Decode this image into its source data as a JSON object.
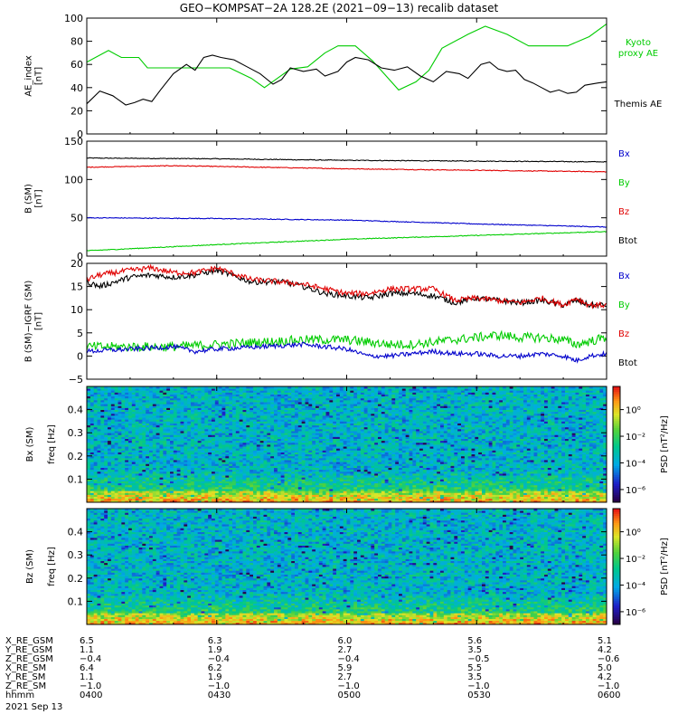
{
  "title": "GEO−KOMPSAT−2A 128.2E (2021−09−13) recalib dataset",
  "colors": {
    "black": "#000000",
    "red": "#e00000",
    "green": "#00cc00",
    "blue": "#0000cc"
  },
  "time_ticks_minutes": [
    0,
    30,
    60,
    90,
    120
  ],
  "chart_data": [
    {
      "type": "line",
      "ylabel": "AE_index [nT]",
      "ylim": [
        0,
        100
      ],
      "yticks": [
        "0",
        "20",
        "40",
        "60",
        "80",
        "100"
      ],
      "legend": [
        {
          "text": "Kyoto proxy AE",
          "lines": [
            "Kyoto",
            "proxy AE"
          ],
          "color": "#00cc00"
        },
        {
          "text": "Themis AE",
          "lines": [
            "Themis AE"
          ],
          "color": "#000000"
        }
      ],
      "series": [
        {
          "name": "Kyoto proxy AE",
          "color": "#00cc00",
          "x": [
            0,
            5,
            8,
            12,
            14,
            33,
            38,
            41,
            44,
            47,
            51,
            55,
            58,
            62,
            66,
            72,
            76,
            79,
            82,
            88,
            92,
            97,
            102,
            106,
            111,
            116,
            120
          ],
          "y": [
            62,
            72,
            66,
            66,
            57,
            57,
            48,
            40,
            48,
            56,
            58,
            70,
            76,
            76,
            63,
            38,
            45,
            55,
            74,
            86,
            93,
            86,
            76,
            76,
            76,
            84,
            95
          ]
        },
        {
          "name": "Themis AE",
          "color": "#000000",
          "x": [
            0,
            3,
            6,
            9,
            11,
            13,
            15,
            17,
            20,
            23,
            25,
            27,
            29,
            31,
            34,
            37,
            40,
            43,
            45,
            47,
            50,
            53,
            55,
            58,
            60,
            62,
            65,
            68,
            71,
            74,
            77,
            80,
            83,
            86,
            88,
            91,
            93,
            95,
            97,
            99,
            101,
            103,
            105,
            107,
            109,
            111,
            113,
            115,
            118,
            120
          ],
          "y": [
            26,
            37,
            33,
            25,
            27,
            30,
            28,
            38,
            52,
            60,
            55,
            66,
            68,
            66,
            64,
            58,
            52,
            43,
            47,
            57,
            54,
            56,
            50,
            54,
            62,
            66,
            64,
            57,
            55,
            58,
            50,
            45,
            54,
            52,
            48,
            60,
            62,
            56,
            54,
            55,
            47,
            44,
            40,
            36,
            38,
            35,
            36,
            42,
            44,
            45
          ]
        }
      ]
    },
    {
      "type": "line",
      "ylabel": "B (SM) [nT]",
      "ylim": [
        0,
        150
      ],
      "yticks": [
        "0",
        "50",
        "100",
        "150"
      ],
      "legend": [
        {
          "text": "Bx",
          "color": "#0000cc"
        },
        {
          "text": "By",
          "color": "#00cc00"
        },
        {
          "text": "Bz",
          "color": "#e00000"
        },
        {
          "text": "Btot",
          "color": "#000000"
        }
      ],
      "series": [
        {
          "name": "Btot",
          "color": "#000000",
          "x": [
            0,
            30,
            60,
            90,
            120
          ],
          "y": [
            128,
            127,
            125,
            124,
            123
          ],
          "jitter": 0.5
        },
        {
          "name": "Bz",
          "color": "#e00000",
          "x": [
            0,
            20,
            30,
            60,
            90,
            120
          ],
          "y": [
            116,
            118,
            117,
            114,
            112,
            110
          ],
          "jitter": 0.5
        },
        {
          "name": "Bx",
          "color": "#0000cc",
          "x": [
            0,
            30,
            60,
            90,
            120
          ],
          "y": [
            50,
            49,
            47,
            42,
            38
          ],
          "jitter": 0.5
        },
        {
          "name": "By",
          "color": "#00cc00",
          "x": [
            0,
            30,
            60,
            90,
            120
          ],
          "y": [
            7,
            15,
            22,
            27,
            32
          ],
          "jitter": 0.5
        }
      ]
    },
    {
      "type": "line",
      "ylabel": "B (SM)−IGRF (SM) [nT]",
      "ylim": [
        -5,
        20
      ],
      "yticks": [
        "−5",
        "0",
        "5",
        "10",
        "15",
        "20"
      ],
      "legend": [
        {
          "text": "Bx",
          "color": "#0000cc"
        },
        {
          "text": "By",
          "color": "#00cc00"
        },
        {
          "text": "Bz",
          "color": "#e00000"
        },
        {
          "text": "Btot",
          "color": "#000000"
        }
      ],
      "series": [
        {
          "name": "Btot",
          "color": "#000000",
          "x": [
            0,
            3,
            10,
            15,
            20,
            25,
            30,
            38,
            45,
            50,
            55,
            60,
            65,
            70,
            75,
            80,
            85,
            90,
            95,
            100,
            105,
            110,
            113,
            116,
            120
          ],
          "y": [
            16,
            15,
            17,
            17.5,
            17,
            17.5,
            18.5,
            16,
            16,
            15,
            13.5,
            13,
            12.5,
            13.5,
            13.5,
            13,
            11.5,
            12.5,
            12,
            11.5,
            12,
            11,
            12,
            11,
            11
          ],
          "jitter": 0.6
        },
        {
          "name": "Bz",
          "color": "#e00000",
          "x": [
            0,
            3,
            10,
            15,
            20,
            25,
            30,
            38,
            45,
            50,
            55,
            60,
            65,
            70,
            75,
            80,
            85,
            90,
            95,
            100,
            105,
            110,
            113,
            116,
            120
          ],
          "y": [
            16.5,
            17.5,
            18.5,
            19,
            18,
            18,
            19,
            16.5,
            16,
            15.5,
            14.5,
            13.5,
            13.5,
            14.5,
            14.5,
            14.5,
            12,
            12.5,
            12,
            11.5,
            12.5,
            11,
            12.5,
            11,
            11
          ],
          "jitter": 0.6
        },
        {
          "name": "By",
          "color": "#00cc00",
          "x": [
            0,
            10,
            20,
            30,
            40,
            50,
            60,
            65,
            70,
            75,
            80,
            90,
            95,
            100,
            105,
            110,
            113,
            120
          ],
          "y": [
            2,
            2,
            2,
            2.5,
            3,
            3.5,
            3.5,
            3,
            2.5,
            2.5,
            3,
            4,
            4.5,
            4,
            4,
            3.5,
            2.5,
            4
          ],
          "jitter": 1.0
        },
        {
          "name": "Bx",
          "color": "#0000cc",
          "x": [
            0,
            10,
            20,
            25,
            30,
            40,
            50,
            55,
            60,
            65,
            70,
            75,
            80,
            85,
            90,
            95,
            100,
            105,
            110,
            113,
            116,
            120
          ],
          "y": [
            1,
            1.5,
            2,
            1,
            1.5,
            2,
            2.5,
            2,
            1.5,
            0,
            0,
            0.5,
            1,
            0.5,
            0.5,
            0,
            0,
            0.5,
            0,
            -1,
            0,
            0.5
          ],
          "jitter": 0.5
        }
      ]
    },
    {
      "type": "heatmap",
      "title": "Bx (SM)",
      "ylabel": "freq [Hz]",
      "ylim": [
        0,
        0.5
      ],
      "yticks": [
        "0.1",
        "0.2",
        "0.3",
        "0.4"
      ],
      "colorbar": {
        "label": "PSD [nT²/Hz]",
        "ticks": [
          "10⁰",
          "10⁻²",
          "10⁻⁴",
          "10⁻⁶"
        ]
      }
    },
    {
      "type": "heatmap",
      "title": "Bz (SM)",
      "ylabel": "freq [Hz]",
      "ylim": [
        0,
        0.5
      ],
      "yticks": [
        "0.1",
        "0.2",
        "0.3",
        "0.4"
      ],
      "colorbar": {
        "label": "PSD [nT²/Hz]",
        "ticks": [
          "10⁰",
          "10⁻²",
          "10⁻⁴",
          "10⁻⁶"
        ]
      }
    }
  ],
  "ephemeris": {
    "labels": [
      "X_RE_GSM",
      "Y_RE_GSM",
      "Z_RE_GSM",
      "X_RE_SM",
      "Y_RE_SM",
      "Z_RE_SM",
      "hhmm"
    ],
    "columns": [
      [
        "6.5",
        "1.1",
        "−0.4",
        "6.4",
        "1.1",
        "−1.0",
        "0400"
      ],
      [
        "6.3",
        "1.9",
        "−0.4",
        "6.2",
        "1.9",
        "−1.0",
        "0430"
      ],
      [
        "6.0",
        "2.7",
        "−0.4",
        "5.9",
        "2.7",
        "−1.0",
        "0500"
      ],
      [
        "5.6",
        "3.5",
        "−0.5",
        "5.5",
        "3.5",
        "−1.0",
        "0530"
      ],
      [
        "5.1",
        "4.2",
        "−0.6",
        "5.0",
        "4.2",
        "−1.0",
        "0600"
      ]
    ],
    "date": "2021 Sep 13"
  }
}
